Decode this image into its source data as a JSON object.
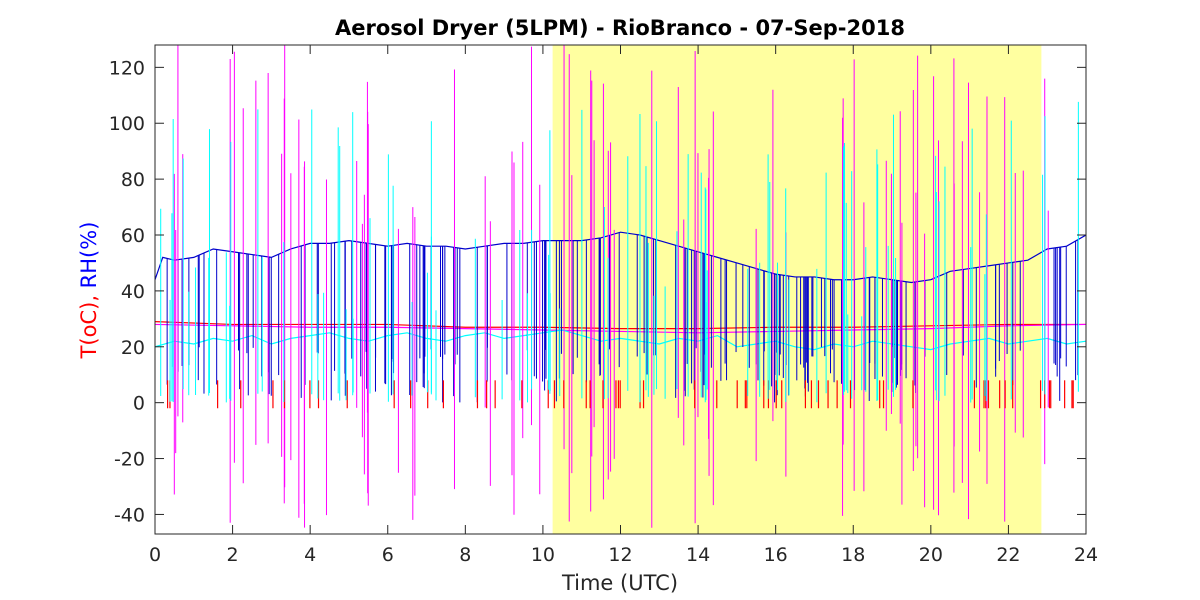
{
  "chart_data": {
    "type": "line",
    "title": "Aerosol Dryer (5LPM) - RioBranco - 07-Sep-2018",
    "xlabel": "Time (UTC)",
    "ylabel_parts": [
      {
        "text": "T(oC), ",
        "color": "#ff0000"
      },
      {
        "text": "RH(%)",
        "color": "#0000ff"
      }
    ],
    "xlim": [
      0,
      24
    ],
    "ylim": [
      -47,
      128
    ],
    "xticks": [
      0,
      2,
      4,
      6,
      8,
      10,
      12,
      14,
      16,
      18,
      20,
      22,
      24
    ],
    "yticks": [
      -40,
      -20,
      0,
      20,
      40,
      60,
      80,
      100,
      120
    ],
    "grid": false,
    "legend": "none",
    "daylight_span": {
      "x": [
        10.25,
        22.85
      ],
      "color": "#ffffa0"
    },
    "series": [
      {
        "color": "#0000cc",
        "x": [
          0,
          0.2,
          0.5,
          1,
          1.5,
          2,
          2.5,
          3,
          3.5,
          4,
          4.5,
          5,
          5.5,
          6,
          6.5,
          7,
          7.5,
          8,
          8.5,
          9,
          9.5,
          10,
          10.5,
          11,
          11.5,
          12,
          12.5,
          13,
          13.5,
          14,
          14.5,
          15,
          15.5,
          16,
          16.5,
          17,
          17.5,
          18,
          18.5,
          19,
          19.5,
          20,
          20.5,
          21,
          21.5,
          22,
          22.5,
          23,
          23.5,
          24
        ],
        "y": [
          44,
          52,
          51,
          52,
          55,
          54,
          53,
          52,
          55,
          57,
          57,
          58,
          57,
          56,
          57,
          56,
          56,
          55,
          56,
          57,
          57,
          58,
          58,
          58,
          59,
          61,
          60,
          58,
          56,
          54,
          52,
          50,
          48,
          46,
          45,
          45,
          44,
          44,
          45,
          44,
          43,
          44,
          47,
          48,
          49,
          50,
          51,
          55,
          56,
          60
        ]
      },
      {
        "color": "#ff0000",
        "x": [
          0,
          2,
          4,
          6,
          8,
          10,
          12,
          14,
          16,
          18,
          20,
          22,
          24
        ],
        "y": [
          29,
          28,
          28,
          28,
          27,
          27,
          26.5,
          26.5,
          27,
          27,
          27.5,
          28,
          28
        ]
      },
      {
        "color": "#ff00ff",
        "x": [
          0,
          2,
          4,
          6,
          8,
          10,
          12,
          14,
          16,
          18,
          20,
          22,
          24
        ],
        "y": [
          28,
          27.5,
          27,
          27,
          26.5,
          26,
          25.5,
          25,
          25.5,
          26,
          26.5,
          27.5,
          28
        ]
      },
      {
        "color": "#00ffff",
        "x": [
          0,
          0.5,
          1,
          1.5,
          2,
          2.5,
          3,
          3.5,
          4,
          4.5,
          5,
          5.5,
          6,
          6.5,
          7,
          7.5,
          8,
          8.5,
          9,
          9.5,
          10,
          10.5,
          11,
          11.5,
          12,
          12.5,
          13,
          13.5,
          14,
          14.5,
          15,
          15.5,
          16,
          16.5,
          17,
          17.5,
          18,
          18.5,
          19,
          19.5,
          20,
          20.5,
          21,
          21.5,
          22,
          22.5,
          23,
          23.5,
          24
        ],
        "y": [
          20,
          22,
          21,
          23,
          22,
          24,
          21,
          23,
          24,
          25,
          23,
          22,
          24,
          25,
          23,
          22,
          24,
          25,
          23,
          24,
          25,
          26,
          24,
          22,
          23,
          22,
          21,
          23,
          22,
          24,
          20,
          21,
          22,
          20,
          19,
          21,
          20,
          22,
          21,
          20,
          19,
          21,
          22,
          23,
          21,
          22,
          23,
          21,
          22
        ]
      }
    ]
  }
}
